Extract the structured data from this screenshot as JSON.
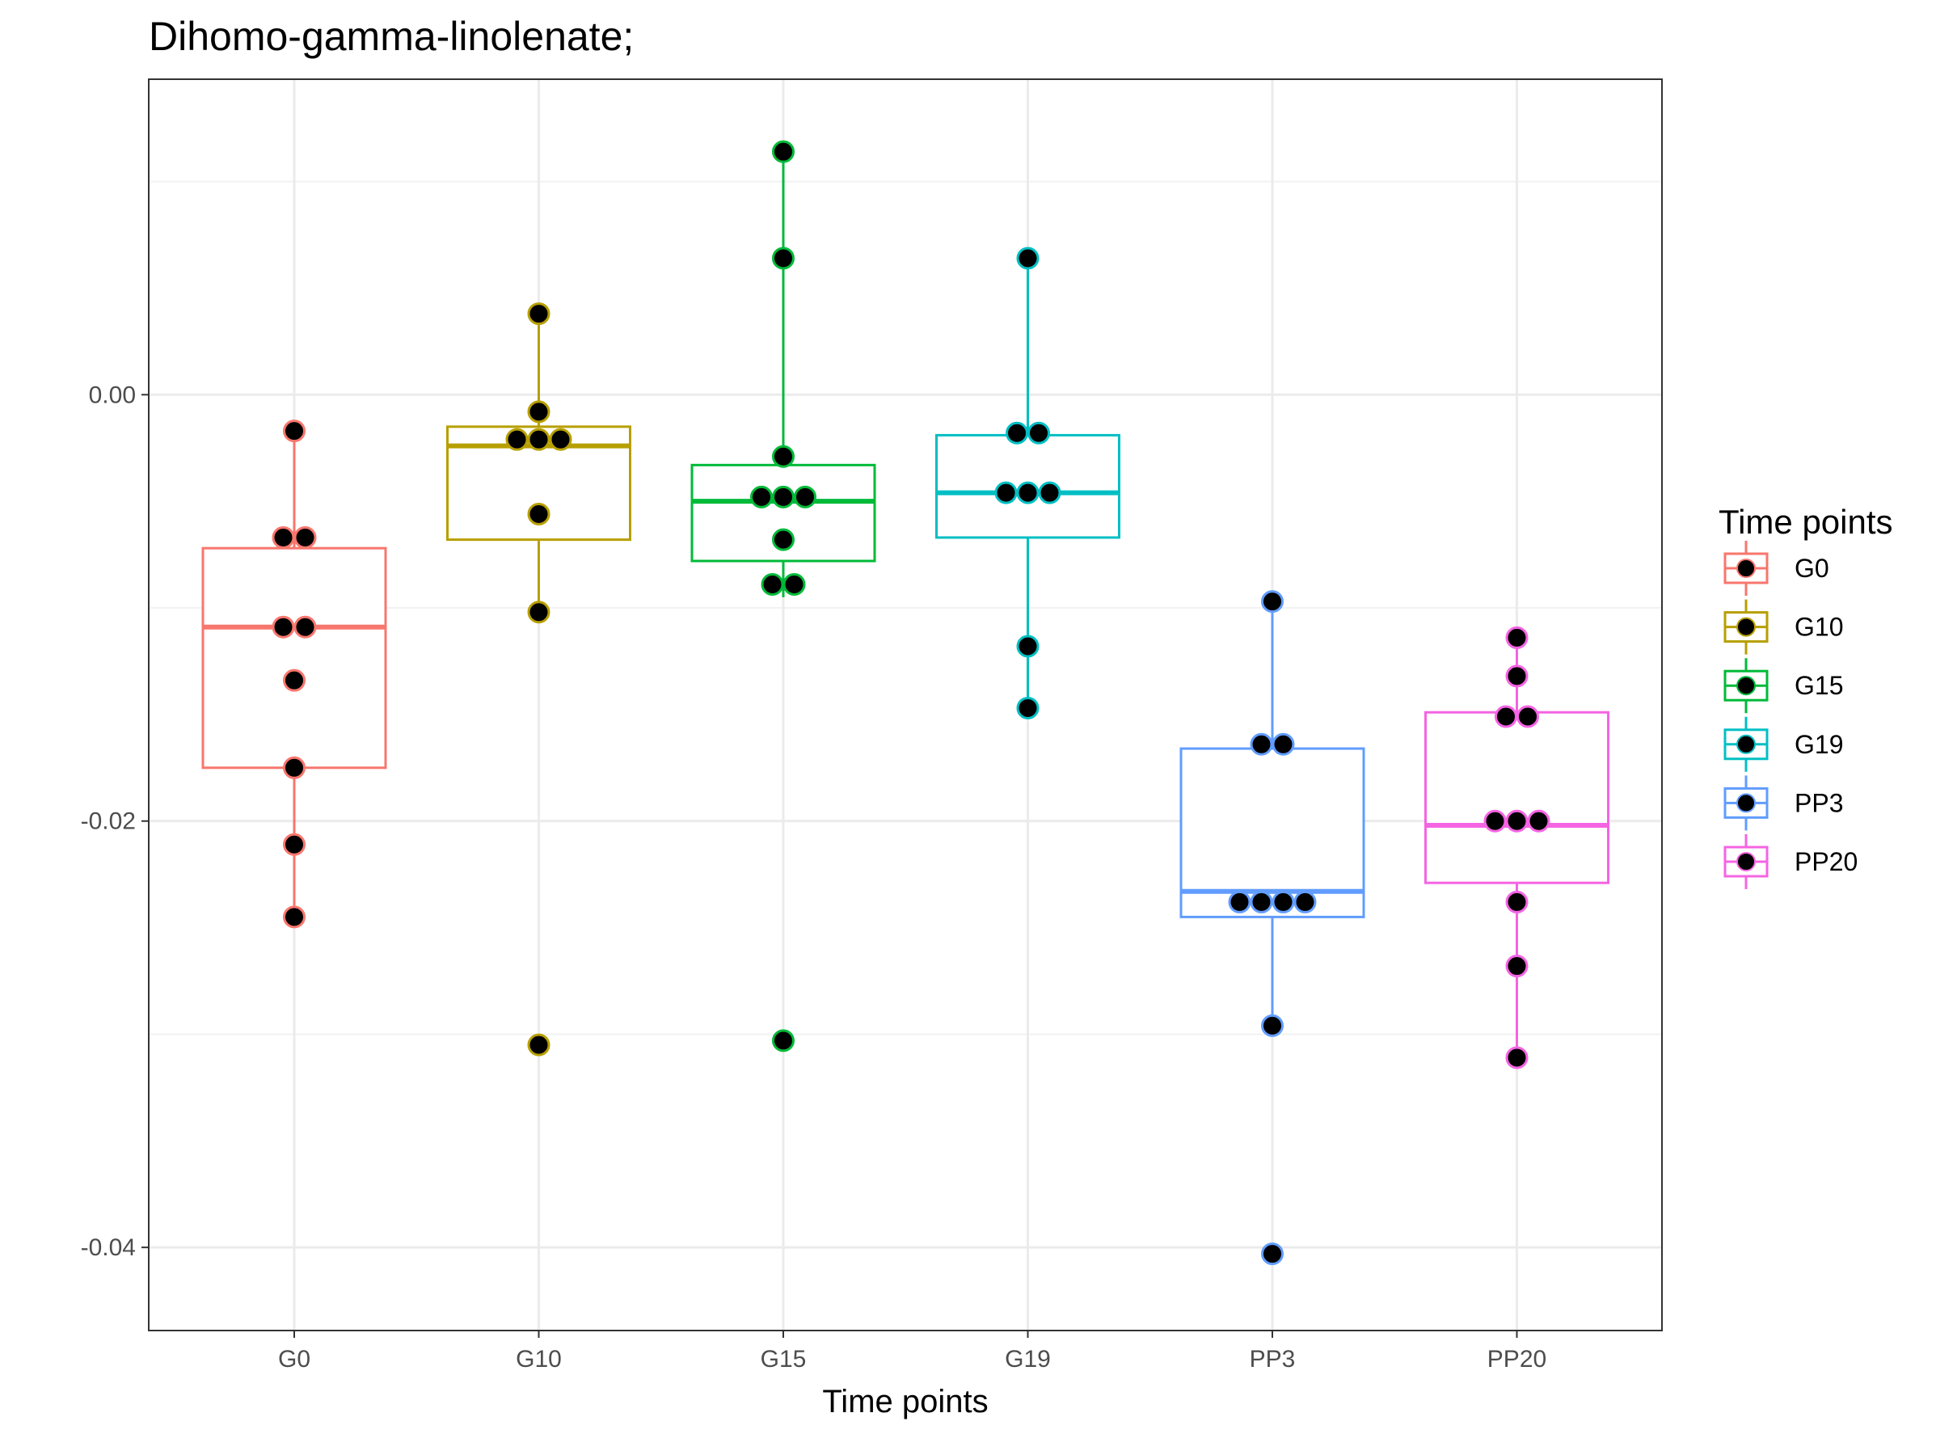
{
  "chart_data": {
    "type": "box",
    "title": "Dihomo-gamma-linolenate;",
    "xlabel": "Time points",
    "ylabel": "",
    "ylim": [
      -0.0439,
      0.0148
    ],
    "y_ticks": [
      0.0,
      -0.02,
      -0.04
    ],
    "y_tick_labels": [
      "0.00",
      "-0.02",
      "-0.04"
    ],
    "grid": true,
    "legend": {
      "title": "Time points",
      "position": "right"
    },
    "categories": [
      "G0",
      "G10",
      "G15",
      "G19",
      "PP3",
      "PP20"
    ],
    "series": [
      {
        "name": "G0",
        "color": "#F8766D",
        "box": {
          "min": -0.0245,
          "q1": -0.0175,
          "median": -0.0109,
          "q3": -0.0072,
          "max": -0.0017
        },
        "points": [
          -0.0017,
          -0.0067,
          -0.0067,
          -0.0109,
          -0.0109,
          -0.0134,
          -0.0175,
          -0.0211,
          -0.0245
        ]
      },
      {
        "name": "G10",
        "color": "#B79F00",
        "box": {
          "min": -0.0102,
          "q1": -0.0068,
          "median": -0.0024,
          "q3": -0.0015,
          "max": 0.0038
        },
        "points": [
          0.0038,
          -0.0008,
          -0.0021,
          -0.0021,
          -0.0021,
          -0.0056,
          -0.0102,
          -0.0305
        ]
      },
      {
        "name": "G15",
        "color": "#00BA38",
        "box": {
          "min": -0.0095,
          "q1": -0.0078,
          "median": -0.005,
          "q3": -0.0033,
          "max": 0.0114
        },
        "points": [
          0.0114,
          0.0064,
          -0.0029,
          -0.0048,
          -0.0048,
          -0.0048,
          -0.0068,
          -0.0089,
          -0.0089,
          -0.0303
        ]
      },
      {
        "name": "G19",
        "color": "#00BFC4",
        "box": {
          "min": -0.0147,
          "q1": -0.0067,
          "median": -0.0046,
          "q3": -0.0019,
          "max": 0.0064
        },
        "points": [
          0.0064,
          -0.0018,
          -0.0018,
          -0.0046,
          -0.0046,
          -0.0046,
          -0.0118,
          -0.0147
        ]
      },
      {
        "name": "PP3",
        "color": "#619CFF",
        "box": {
          "min": -0.0296,
          "q1": -0.0245,
          "median": -0.0233,
          "q3": -0.0166,
          "max": -0.0097
        },
        "points": [
          -0.0097,
          -0.0164,
          -0.0164,
          -0.0238,
          -0.0238,
          -0.0238,
          -0.0238,
          -0.0296,
          -0.0403
        ]
      },
      {
        "name": "PP20",
        "color": "#F564E3",
        "box": {
          "min": -0.0311,
          "q1": -0.0229,
          "median": -0.0202,
          "q3": -0.0149,
          "max": -0.0114
        },
        "points": [
          -0.0114,
          -0.0132,
          -0.0151,
          -0.0151,
          -0.02,
          -0.02,
          -0.02,
          -0.0238,
          -0.0268,
          -0.0311
        ]
      }
    ]
  }
}
